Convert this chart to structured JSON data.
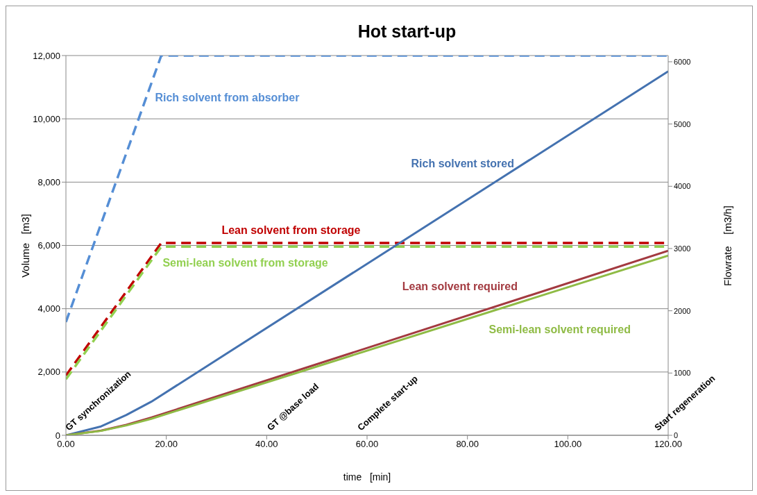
{
  "chart_data": {
    "type": "line",
    "title": "Hot start-up",
    "xlabel": "time   [min]",
    "ylabel": "Volume   [m3]",
    "y2label": "Flowrate    [m3/h]",
    "xlim": [
      0,
      120
    ],
    "xticks": [
      {
        "value": 0,
        "label": "0.00"
      },
      {
        "value": 20,
        "label": "20.00"
      },
      {
        "value": 40,
        "label": "40.00"
      },
      {
        "value": 60,
        "label": "60.00"
      },
      {
        "value": 80,
        "label": "80.00"
      },
      {
        "value": 100,
        "label": "100.00"
      },
      {
        "value": 120,
        "label": "120.00"
      }
    ],
    "ylim": [
      0,
      12000
    ],
    "yticks": [
      0,
      {
        "value": 2000,
        "label": "2,000"
      },
      {
        "value": 4000,
        "label": "4,000"
      },
      {
        "value": 6000,
        "label": "6,000"
      },
      {
        "value": 8000,
        "label": "8,000"
      },
      {
        "value": 10000,
        "label": "10,000"
      },
      {
        "value": 12000,
        "label": "12,000"
      }
    ],
    "y2lim": [
      0,
      6100
    ],
    "y2ticks": [
      0,
      1000,
      2000,
      3000,
      4000,
      5000,
      6000
    ],
    "grid": "y",
    "marker": "none",
    "series": [
      {
        "name": "Rich solvent from absorber",
        "color": "#558ed5",
        "axis": "y2",
        "line_style": "dashed",
        "x": [
          0,
          19,
          120
        ],
        "values": [
          1820,
          6100,
          6100
        ]
      },
      {
        "name": "Lean solvent from storage",
        "color": "#c00000",
        "axis": "y2",
        "line_style": "dashed",
        "x": [
          0,
          19,
          120
        ],
        "values": [
          960,
          3090,
          3090
        ]
      },
      {
        "name": "Semi-lean solvent from storage",
        "color": "#92d050",
        "axis": "y2",
        "line_style": "dashed",
        "x": [
          0,
          19,
          120
        ],
        "values": [
          900,
          3030,
          3030
        ]
      },
      {
        "name": "Rich solvent stored",
        "color": "#4472b0",
        "line_style": "solid",
        "x": [
          0,
          7,
          12,
          17,
          120
        ],
        "values": [
          0,
          280,
          640,
          1060,
          11500
        ]
      },
      {
        "name": "Lean solvent required",
        "color": "#a33a40",
        "line_style": "solid",
        "x": [
          0,
          7,
          12,
          17,
          120
        ],
        "values": [
          0,
          150,
          330,
          560,
          5830
        ]
      },
      {
        "name": "Semi-lean solvent required",
        "color": "#8fbb45",
        "line_style": "solid",
        "x": [
          0,
          7,
          12,
          17,
          120
        ],
        "values": [
          0,
          140,
          310,
          520,
          5680
        ]
      }
    ],
    "annotations": [
      "GT synchronization",
      "GT @base load",
      "Complete start-up",
      "Start regeneration"
    ]
  }
}
